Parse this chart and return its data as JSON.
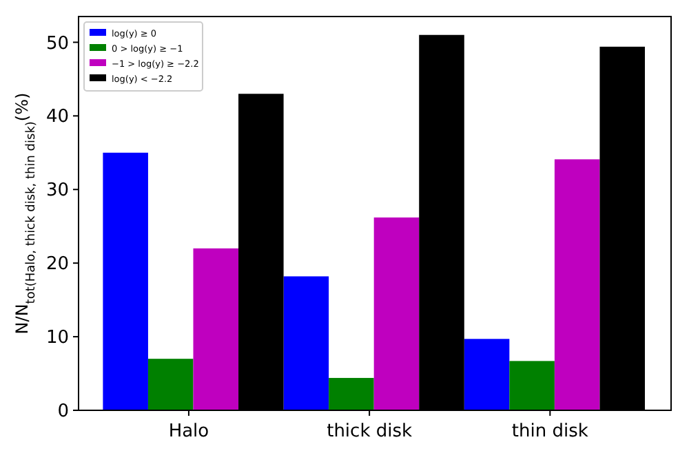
{
  "chart_data": {
    "type": "bar",
    "ylabel": "N/N$_{tot(Halo, thick disk, thin disk)}$(%)",
    "categories": [
      "Halo",
      "thick disk",
      "thin disk"
    ],
    "series": [
      {
        "name": "log(y) ≥ 0",
        "color": "#0000ff",
        "values": [
          35,
          18.2,
          9.7
        ]
      },
      {
        "name": "0 > log(y) ≥ −1",
        "color": "#008000",
        "values": [
          7,
          4.4,
          6.7
        ]
      },
      {
        "name": "−1 > log(y) ≥ −2.2",
        "color": "#bf00bf",
        "values": [
          22,
          26.2,
          34.1
        ]
      },
      {
        "name": "log(y) < −2.2",
        "color": "#000000",
        "values": [
          43,
          51,
          49.4
        ]
      }
    ],
    "ylim": [
      0,
      53.5
    ],
    "yticks": [
      0,
      10,
      20,
      30,
      40,
      50
    ],
    "legend": "top left",
    "grid": false
  }
}
